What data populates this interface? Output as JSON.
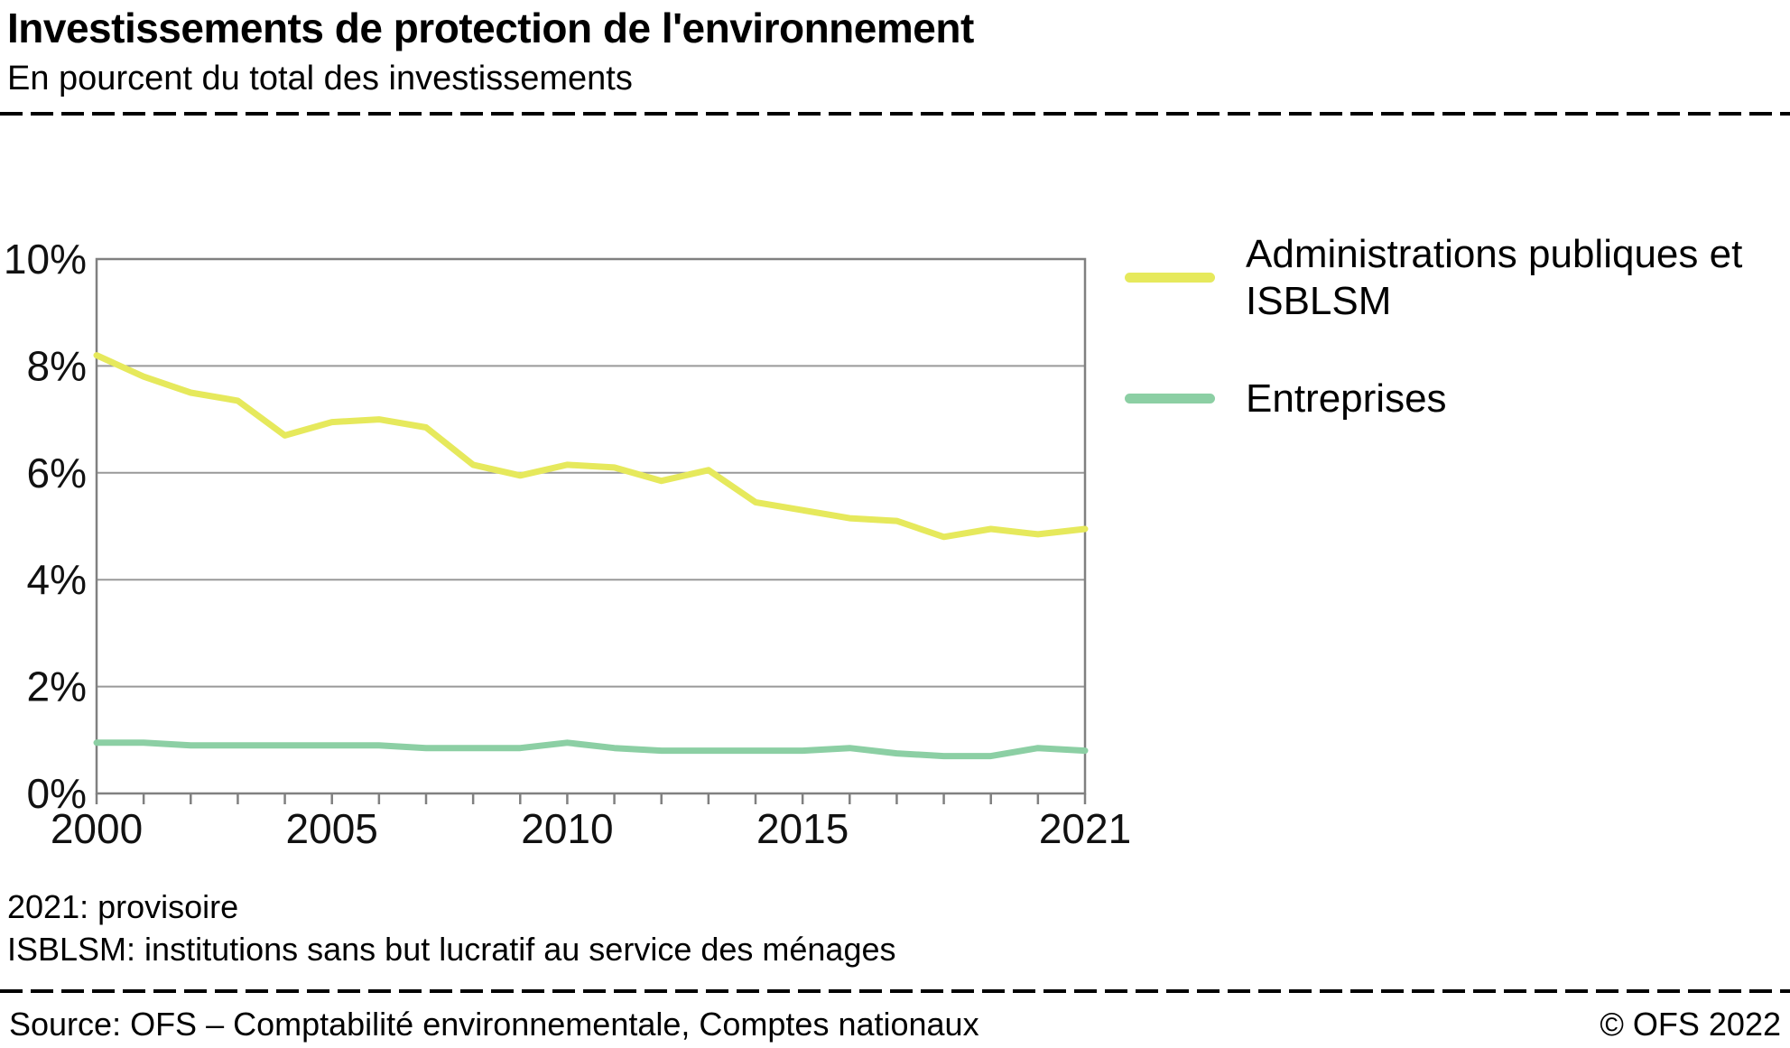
{
  "header": {
    "title": "Investissements de protection de l'environnement",
    "subtitle": "En pourcent du total des investissements"
  },
  "chart_data": {
    "type": "line",
    "title": "Investissements de protection de l'environnement",
    "subtitle": "En pourcent du total des investissements",
    "x": [
      2000,
      2001,
      2002,
      2003,
      2004,
      2005,
      2006,
      2007,
      2008,
      2009,
      2010,
      2011,
      2012,
      2013,
      2014,
      2015,
      2016,
      2017,
      2018,
      2019,
      2020,
      2021
    ],
    "series": [
      {
        "name": "Administrations publiques et ISBLSM",
        "color": "#e6e95c",
        "values": [
          8.2,
          7.8,
          7.5,
          7.35,
          6.7,
          6.95,
          7.0,
          6.85,
          6.15,
          5.95,
          6.15,
          6.1,
          5.85,
          6.05,
          5.45,
          5.3,
          5.15,
          5.1,
          4.8,
          4.95,
          4.85,
          4.95
        ]
      },
      {
        "name": "Entreprises",
        "color": "#8ccfa4",
        "values": [
          0.95,
          0.95,
          0.9,
          0.9,
          0.9,
          0.9,
          0.9,
          0.85,
          0.85,
          0.85,
          0.95,
          0.85,
          0.8,
          0.8,
          0.8,
          0.8,
          0.85,
          0.75,
          0.7,
          0.7,
          0.85,
          0.8
        ]
      }
    ],
    "ylim": [
      0,
      10
    ],
    "yticks": [
      {
        "v": 0,
        "label": "0%"
      },
      {
        "v": 2,
        "label": "2%"
      },
      {
        "v": 4,
        "label": "4%"
      },
      {
        "v": 6,
        "label": "6%"
      },
      {
        "v": 8,
        "label": "8%"
      },
      {
        "v": 10,
        "label": "10%"
      }
    ],
    "xticks": [
      {
        "v": 2000,
        "label": "2000"
      },
      {
        "v": 2005,
        "label": "2005"
      },
      {
        "v": 2010,
        "label": "2010"
      },
      {
        "v": 2015,
        "label": "2015"
      },
      {
        "v": 2021,
        "label": "2021"
      }
    ],
    "grid": true,
    "legend_position": "right",
    "colors": {
      "grid": "#999999",
      "plot_border": "#808080",
      "text": "#111111"
    }
  },
  "footnotes": [
    "2021: provisoire",
    "ISBLSM: institutions sans but lucratif au service des ménages"
  ],
  "footer": {
    "source": "Source: OFS – Comptabilité environnementale, Comptes nationaux",
    "copyright": "© OFS 2022"
  }
}
